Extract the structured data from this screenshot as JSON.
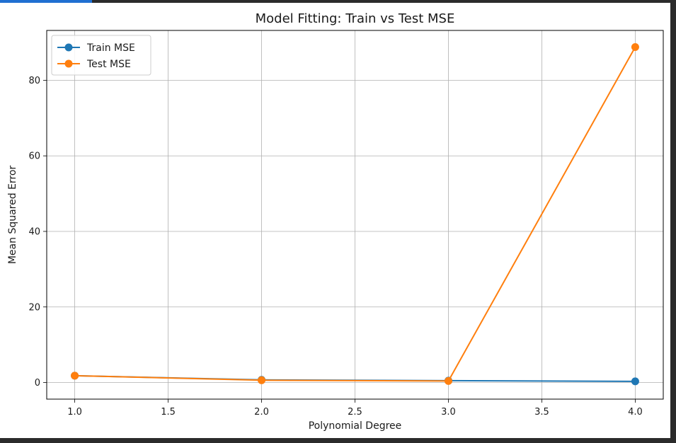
{
  "colors": {
    "frame": "#2b2b2b",
    "accent": "#1f6fd1",
    "background": "#ffffff",
    "grid": "#b0b0b0",
    "train": "#1f77b4",
    "test": "#ff7f0e"
  },
  "chart_data": {
    "type": "line",
    "title": "Model Fitting: Train vs Test MSE",
    "xlabel": "Polynomial Degree",
    "ylabel": "Mean Squared Error",
    "xlim": [
      0.85,
      4.15
    ],
    "ylim": [
      -4.4,
      93.2
    ],
    "xticks": [
      1.0,
      1.5,
      2.0,
      2.5,
      3.0,
      3.5,
      4.0
    ],
    "xtick_labels": [
      "1.0",
      "1.5",
      "2.0",
      "2.5",
      "3.0",
      "3.5",
      "4.0"
    ],
    "yticks": [
      0,
      20,
      40,
      60,
      80
    ],
    "ytick_labels": [
      "0",
      "20",
      "40",
      "60",
      "80"
    ],
    "grid": true,
    "legend_position": "top-left",
    "x": [
      1,
      2,
      3,
      4
    ],
    "series": [
      {
        "name": "Train MSE",
        "color": "#1f77b4",
        "marker": "circle",
        "values": [
          1.8,
          0.7,
          0.5,
          0.3
        ]
      },
      {
        "name": "Test MSE",
        "color": "#ff7f0e",
        "marker": "circle",
        "values": [
          1.8,
          0.6,
          0.4,
          88.8
        ]
      }
    ]
  }
}
